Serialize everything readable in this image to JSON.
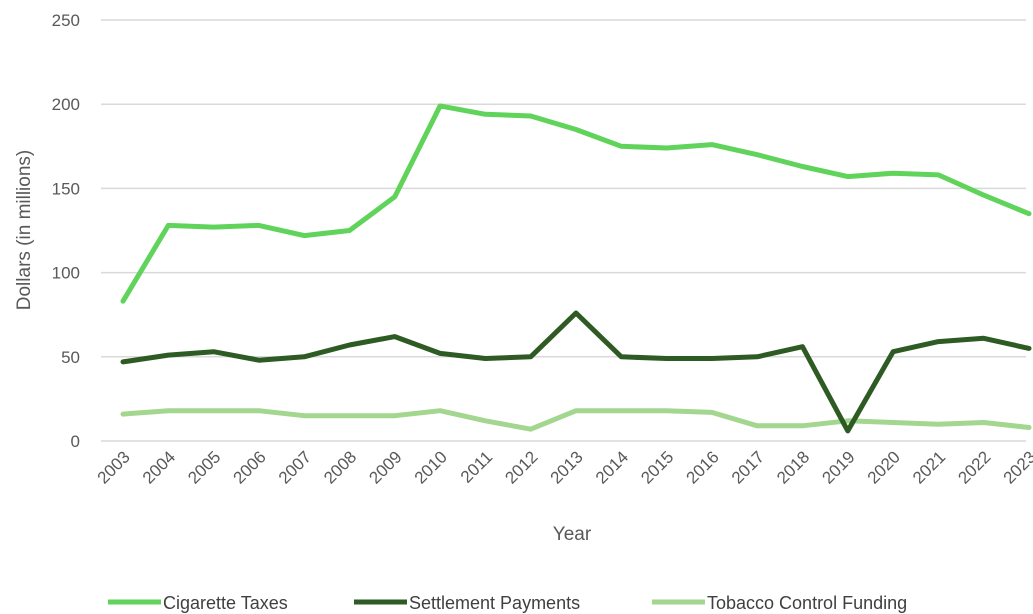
{
  "chart_data": {
    "type": "line",
    "title": "",
    "xlabel": "Year",
    "ylabel": "Dollars (in millions)",
    "ylim": [
      0,
      250
    ],
    "yticks": [
      0,
      50,
      100,
      150,
      200,
      250
    ],
    "grid": true,
    "legend_position": "bottom",
    "categories": [
      "2003",
      "2004",
      "2005",
      "2006",
      "2007",
      "2008",
      "2009",
      "2010",
      "2011",
      "2012",
      "2013",
      "2014",
      "2015",
      "2016",
      "2017",
      "2018",
      "2019",
      "2020",
      "2021",
      "2022",
      "2023"
    ],
    "series": [
      {
        "name": "Cigarette Taxes",
        "color": "#5fd35a",
        "values": [
          83,
          128,
          127,
          128,
          122,
          125,
          145,
          199,
          194,
          193,
          185,
          175,
          174,
          176,
          170,
          163,
          157,
          159,
          158,
          146,
          135
        ]
      },
      {
        "name": "Settlement Payments",
        "color": "#2e5a23",
        "values": [
          47,
          51,
          53,
          48,
          50,
          57,
          62,
          52,
          49,
          50,
          76,
          50,
          49,
          49,
          50,
          56,
          6,
          53,
          59,
          61,
          55
        ]
      },
      {
        "name": "Tobacco Control Funding",
        "color": "#a3d68e",
        "values": [
          16,
          18,
          18,
          18,
          15,
          15,
          15,
          18,
          12,
          7,
          18,
          18,
          18,
          17,
          9,
          9,
          12,
          11,
          10,
          11,
          8
        ]
      }
    ]
  }
}
